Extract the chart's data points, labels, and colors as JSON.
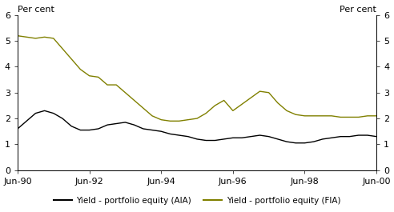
{
  "ylabel_left": "Per cent",
  "ylabel_right": "Per cent",
  "ylim": [
    0,
    6
  ],
  "yticks": [
    0,
    1,
    2,
    3,
    4,
    5,
    6
  ],
  "aia_color": "#000000",
  "fia_color": "#808000",
  "legend_aia": "Yield - portfolio equity (AIA)",
  "legend_fia": "Yield - portfolio equity (FIA)",
  "aia_data": {
    "x": [
      1990,
      1990.25,
      1990.5,
      1990.75,
      1991,
      1991.25,
      1991.5,
      1991.75,
      1992,
      1992.25,
      1992.5,
      1992.75,
      1993,
      1993.25,
      1993.5,
      1993.75,
      1994,
      1994.25,
      1994.5,
      1994.75,
      1995,
      1995.25,
      1995.5,
      1995.75,
      1996,
      1996.25,
      1996.5,
      1996.75,
      1997,
      1997.25,
      1997.5,
      1997.75,
      1998,
      1998.25,
      1998.5,
      1998.75,
      1999,
      1999.25,
      1999.5,
      1999.75,
      2000
    ],
    "y": [
      1.6,
      1.9,
      2.2,
      2.3,
      2.2,
      2.0,
      1.7,
      1.55,
      1.55,
      1.6,
      1.75,
      1.8,
      1.85,
      1.75,
      1.6,
      1.55,
      1.5,
      1.4,
      1.35,
      1.3,
      1.2,
      1.15,
      1.15,
      1.2,
      1.25,
      1.25,
      1.3,
      1.35,
      1.3,
      1.2,
      1.1,
      1.05,
      1.05,
      1.1,
      1.2,
      1.25,
      1.3,
      1.3,
      1.35,
      1.35,
      1.3
    ]
  },
  "fia_data": {
    "x": [
      1990,
      1990.25,
      1990.5,
      1990.75,
      1991,
      1991.25,
      1991.5,
      1991.75,
      1992,
      1992.25,
      1992.5,
      1992.75,
      1993,
      1993.25,
      1993.5,
      1993.75,
      1994,
      1994.25,
      1994.5,
      1994.75,
      1995,
      1995.25,
      1995.5,
      1995.75,
      1996,
      1996.25,
      1996.5,
      1996.75,
      1997,
      1997.25,
      1997.5,
      1997.75,
      1998,
      1998.25,
      1998.5,
      1998.75,
      1999,
      1999.25,
      1999.5,
      1999.75,
      2000
    ],
    "y": [
      5.2,
      5.15,
      5.1,
      5.15,
      5.1,
      4.7,
      4.3,
      3.9,
      3.65,
      3.6,
      3.3,
      3.3,
      3.0,
      2.7,
      2.4,
      2.1,
      1.95,
      1.9,
      1.9,
      1.95,
      2.0,
      2.2,
      2.5,
      2.7,
      2.3,
      2.55,
      2.8,
      3.05,
      3.0,
      2.6,
      2.3,
      2.15,
      2.1,
      2.1,
      2.1,
      2.1,
      2.05,
      2.05,
      2.05,
      2.1,
      2.1
    ]
  },
  "xtick_positions": [
    1990,
    1992,
    1994,
    1996,
    1998,
    2000
  ],
  "xtick_labels": [
    "Jun-90",
    "Jun-92",
    "Jun-94",
    "Jun-96",
    "Jun-98",
    "Jun-00"
  ],
  "xlim": [
    1990,
    2000.0
  ],
  "bg_color": "#ffffff",
  "tick_fontsize": 8,
  "label_fontsize": 8,
  "legend_fontsize": 7.5
}
